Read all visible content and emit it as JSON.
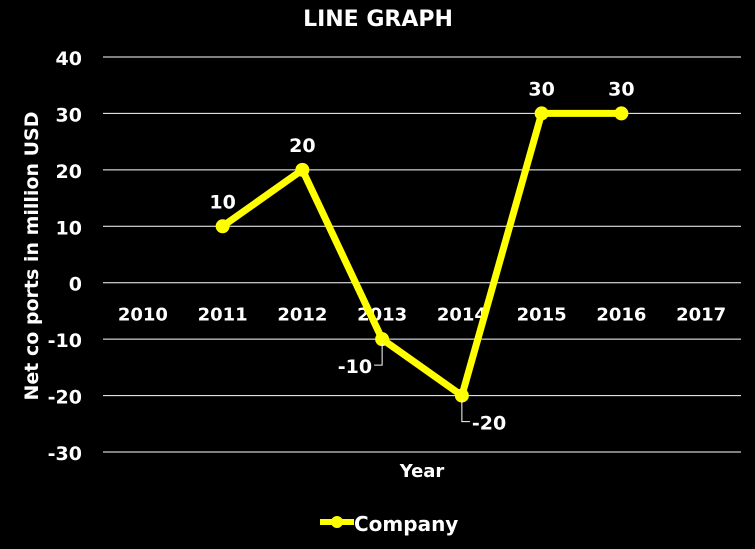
{
  "chart_data": {
    "type": "line",
    "title": "LINE GRAPH",
    "xlabel": "Year",
    "ylabel": "Net co ports in million USD",
    "categories": [
      "2010",
      "2011",
      "2012",
      "2013",
      "2014",
      "2015",
      "2016",
      "2017"
    ],
    "series": [
      {
        "name": "Company",
        "values": [
          null,
          10,
          20,
          -10,
          -20,
          30,
          30,
          null
        ],
        "data_labels": [
          null,
          "10",
          "20",
          "-10",
          "-20",
          "30",
          "30",
          null
        ]
      }
    ],
    "yticks": [
      "40",
      "30",
      "20",
      "10",
      "0",
      "-10",
      "-20",
      "-30"
    ],
    "ylim": [
      -30,
      40
    ],
    "grid": true,
    "legend": "bottom",
    "colors": {
      "background": "#000000",
      "series": "#ffff00",
      "text": "#ffffff",
      "grid": "#ffffff"
    }
  }
}
